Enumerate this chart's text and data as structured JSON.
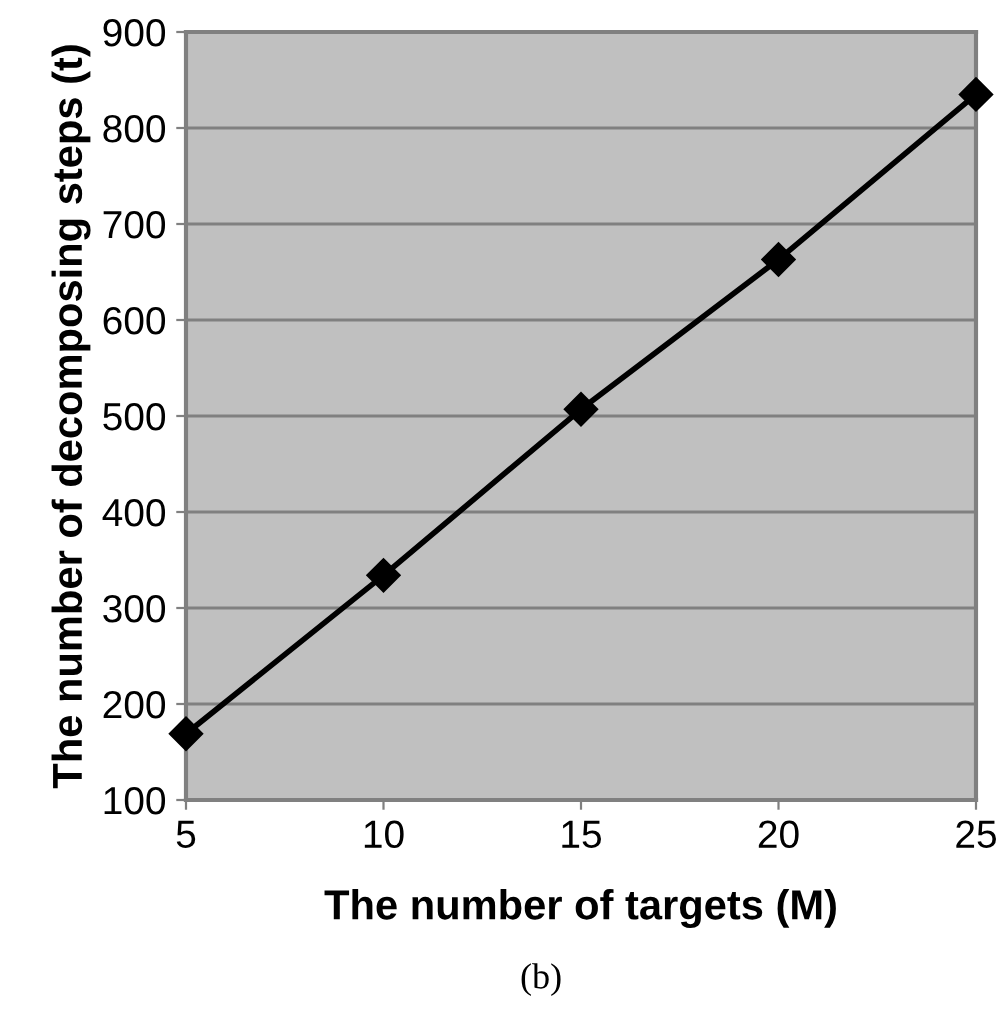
{
  "chart_data": {
    "type": "line",
    "xlabel": "The number of targets (M)",
    "ylabel": "The number of decomposing steps (t)",
    "annotations": [
      "(b)"
    ],
    "x": [
      5,
      10,
      15,
      20,
      25
    ],
    "series": [
      {
        "color": "#000000",
        "values": [
          169,
          334,
          507,
          663,
          835
        ]
      }
    ],
    "xlim": [
      5,
      25
    ],
    "xticks": [
      5,
      10,
      15,
      20,
      25
    ],
    "ylim": [
      100,
      900
    ],
    "yticks": [
      100,
      200,
      300,
      400,
      500,
      600,
      700,
      800,
      900
    ],
    "grid": "y",
    "marker": "diamond",
    "line_style": "solid",
    "legend": false
  }
}
